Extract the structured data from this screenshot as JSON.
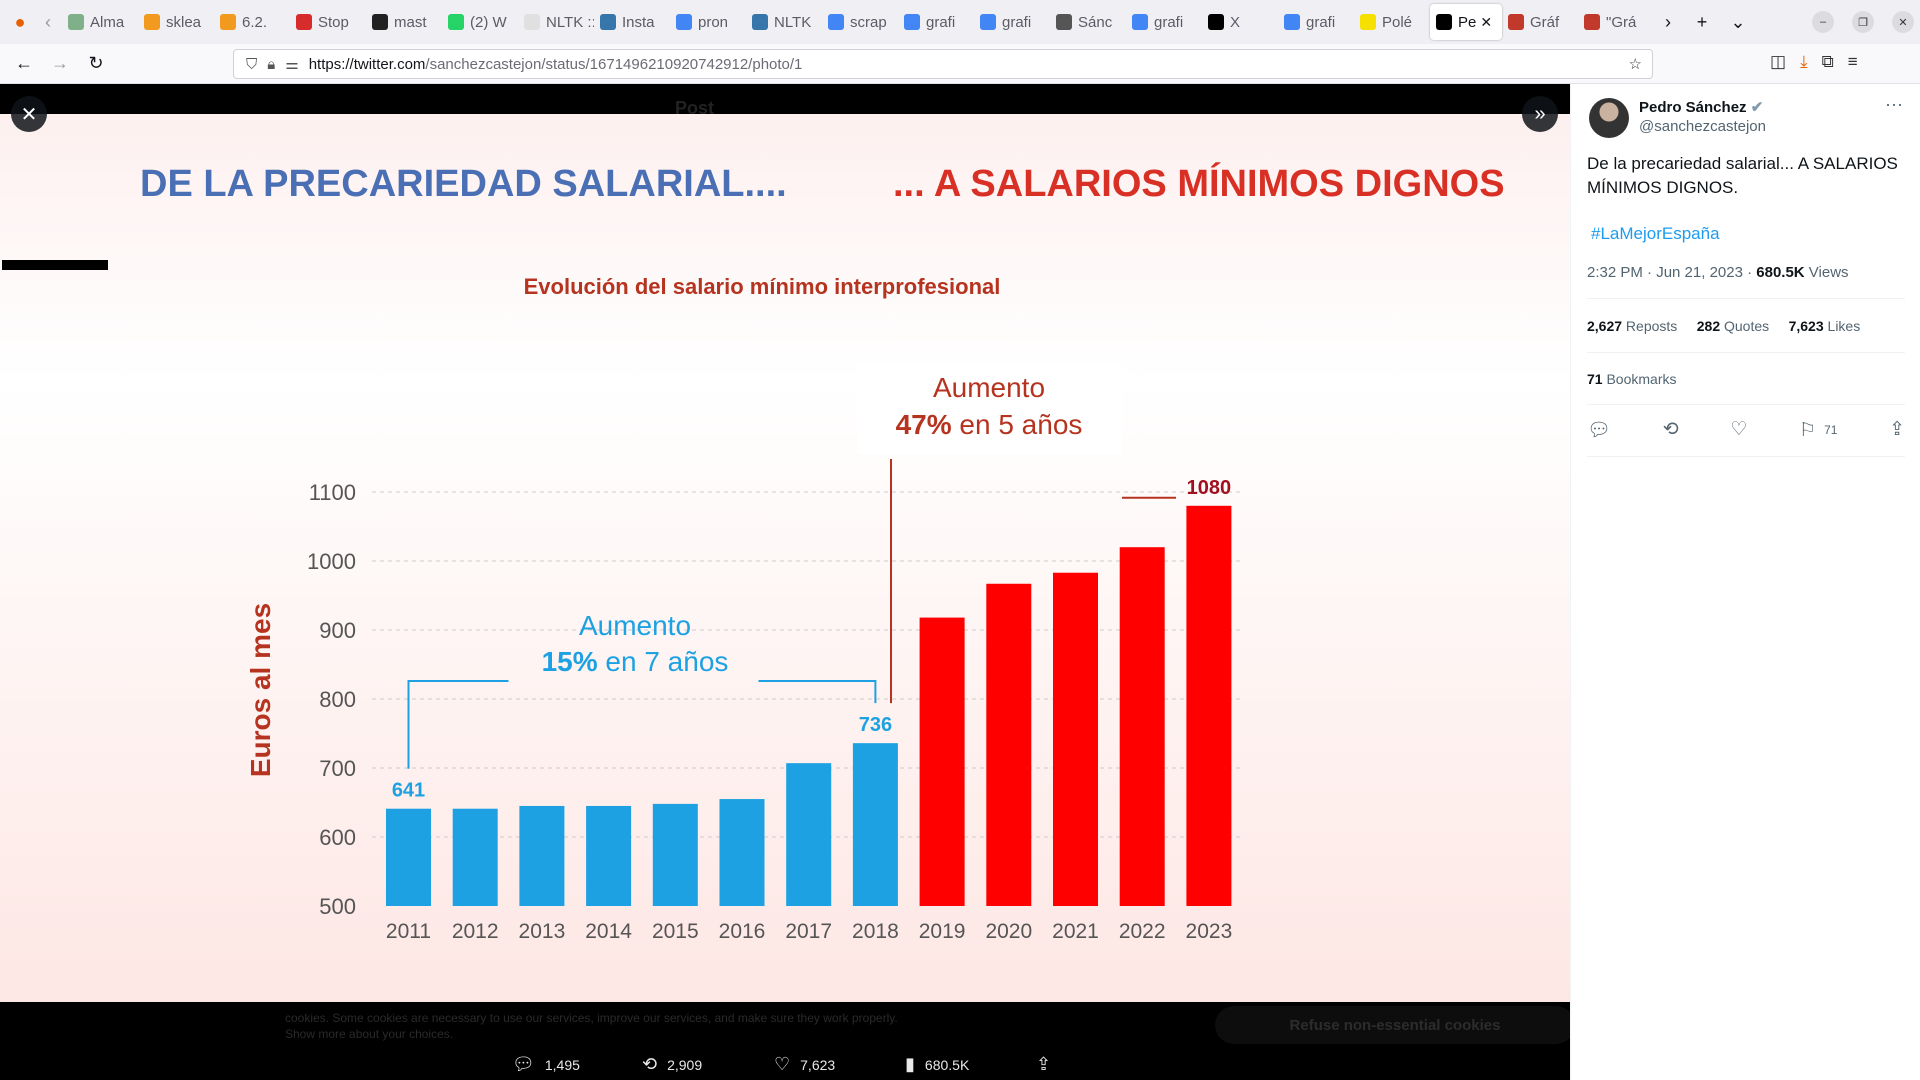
{
  "browser": {
    "tabs": [
      {
        "label": "Alma",
        "icon": "globe-icon",
        "color": "#7fb08a"
      },
      {
        "label": "sklea",
        "icon": "chart-icon",
        "color": "#f29a1f"
      },
      {
        "label": "6.2.",
        "icon": "chart-icon",
        "color": "#f29a1f"
      },
      {
        "label": "Stop",
        "icon": "stop-icon",
        "color": "#d62c2c"
      },
      {
        "label": "mast",
        "icon": "github-icon",
        "color": "#222222"
      },
      {
        "label": "(2) W",
        "icon": "whatsapp-icon",
        "color": "#25d366"
      },
      {
        "label": "NLTK :: N",
        "icon": "page-icon",
        "color": "#e0e0e0"
      },
      {
        "label": "Insta",
        "icon": "python-icon",
        "color": "#3776ab"
      },
      {
        "label": "pron",
        "icon": "google-icon",
        "color": "#4285f4"
      },
      {
        "label": "NLTK",
        "icon": "python-icon",
        "color": "#3776ab"
      },
      {
        "label": "scrap",
        "icon": "google-icon",
        "color": "#4285f4"
      },
      {
        "label": "grafi",
        "icon": "google-icon",
        "color": "#4285f4"
      },
      {
        "label": "grafi",
        "icon": "google-icon",
        "color": "#4285f4"
      },
      {
        "label": "Sánc",
        "icon": "page-icon",
        "color": "#555555"
      },
      {
        "label": "grafi",
        "icon": "google-icon",
        "color": "#4285f4"
      },
      {
        "label": "X",
        "icon": "x-icon",
        "color": "#000000"
      },
      {
        "label": "grafi",
        "icon": "google-icon",
        "color": "#4285f4"
      },
      {
        "label": "Polé",
        "icon": "to-icon",
        "color": "#f5e000"
      },
      {
        "label": "Pe",
        "icon": "x-icon",
        "color": "#000000",
        "active": true
      },
      {
        "label": "Gráf",
        "icon": "m-icon",
        "color": "#c0392b"
      },
      {
        "label": "\"Grá",
        "icon": "v-icon",
        "color": "#c0392b"
      }
    ],
    "url_host": "https://twitter.com",
    "url_path": "/sanchezcastejon/status/1671496210920742912/photo/1"
  },
  "overlay": {
    "header_post": "Post",
    "cookie_text": "cookies. Some cookies are necessary to use our services, improve our services, and make sure they work properly. Show more about your choices.",
    "cookie_button": "Refuse non-essential cookies"
  },
  "media_stats": {
    "replies": "1,495",
    "reposts": "2,909",
    "likes": "7,623",
    "views": "680.5K"
  },
  "slide": {
    "title_left": "DE  LA PRECARIEDAD SALARIAL....",
    "title_right": "... A SALARIOS MÍNIMOS DIGNOS",
    "annotation_blue_line1": "Aumento",
    "annotation_blue_line2_bold": "15%",
    "annotation_blue_line2_rest": " en 7 años",
    "annotation_red_line1": "Aumento",
    "annotation_red_line2_bold": "47%",
    "annotation_red_line2_rest": " en 5 años",
    "colors": {
      "blue": "#1da1e2",
      "red": "#ff0000",
      "title_blue": "#4a6fb5",
      "title_red": "#d93025",
      "subtitle": "#b5331f",
      "annotation_red": "#b5331f"
    }
  },
  "chart_data": {
    "type": "bar",
    "title": "Evolución del salario mínimo interprofesional",
    "ylabel": "Euros al mes",
    "xlabel": "",
    "categories": [
      "2011",
      "2012",
      "2013",
      "2014",
      "2015",
      "2016",
      "2017",
      "2018",
      "2019",
      "2020",
      "2021",
      "2022",
      "2023"
    ],
    "values": [
      641,
      641,
      645,
      645,
      648,
      655,
      707,
      736,
      918,
      967,
      983,
      1020,
      1080
    ],
    "value_labels": {
      "2011": "641",
      "2018": "736",
      "2023": "1080"
    },
    "bar_colors": [
      "blue",
      "blue",
      "blue",
      "blue",
      "blue",
      "blue",
      "blue",
      "blue",
      "red",
      "red",
      "red",
      "red",
      "red"
    ],
    "ylim": [
      500,
      1100
    ],
    "yticks": [
      500,
      600,
      700,
      800,
      900,
      1000,
      1100
    ],
    "grid": true
  },
  "tweet": {
    "name": "Pedro Sánchez",
    "handle": "@sanchezcastejon",
    "text": "De la precariedad salarial... A SALARIOS MÍNIMOS DIGNOS.",
    "hashtag": "#LaMejorEspaña",
    "time": "2:32 PM · Jun 21, 2023 · ",
    "views": "680.5K",
    "views_label": " Views",
    "reposts": "2,627",
    "reposts_label": " Reposts",
    "quotes": "282",
    "quotes_label": " Quotes",
    "likes": "7,623",
    "likes_label": " Likes",
    "bookmarks": "71",
    "bookmarks_label": " Bookmarks",
    "bookmark_count": "71"
  }
}
